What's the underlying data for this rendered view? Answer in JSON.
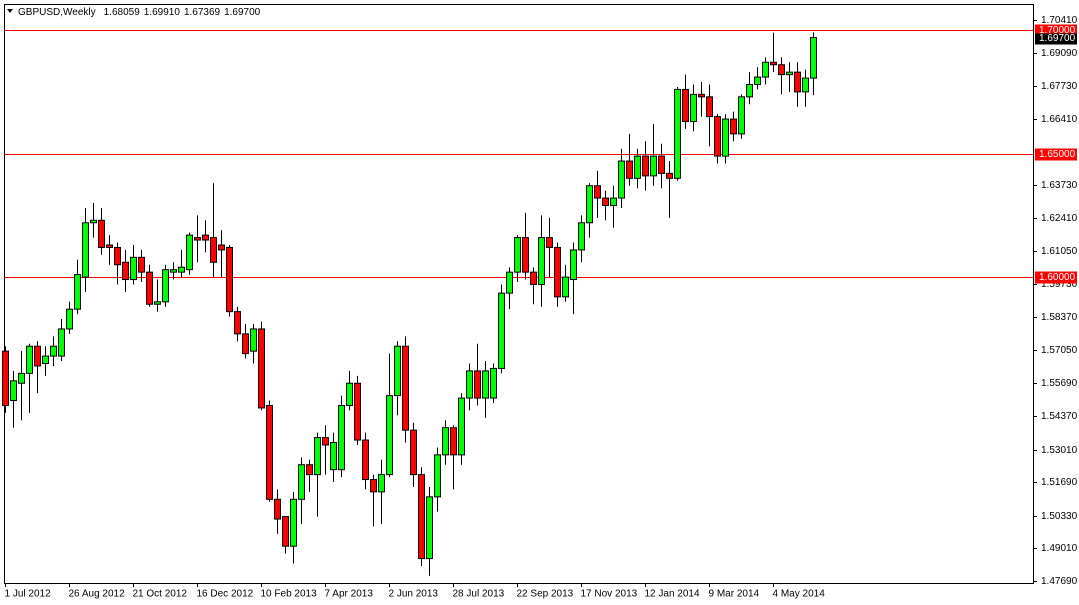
{
  "chart_data": {
    "type": "candlestick",
    "title": "GBPUSD,Weekly",
    "last_ohlc": [
      {
        "value": 1.68059,
        "label": "1.68059"
      },
      {
        "value": 1.6991,
        "label": "1.69910"
      },
      {
        "value": 1.67369,
        "label": "1.67369"
      },
      {
        "value": 1.697,
        "label": "1.69700"
      }
    ],
    "categories": [
      "1 Jul 2012",
      null,
      null,
      null,
      null,
      null,
      null,
      null,
      "26 Aug 2012",
      null,
      null,
      null,
      null,
      null,
      null,
      null,
      "21 Oct 2012",
      null,
      null,
      null,
      null,
      null,
      null,
      null,
      "16 Dec 2012",
      null,
      null,
      null,
      null,
      null,
      null,
      null,
      "10 Feb 2013",
      null,
      null,
      null,
      null,
      null,
      null,
      null,
      "7 Apr 2013",
      null,
      null,
      null,
      null,
      null,
      null,
      null,
      "2 Jun 2013",
      null,
      null,
      null,
      null,
      null,
      null,
      null,
      "28 Jul 2013",
      null,
      null,
      null,
      null,
      null,
      null,
      null,
      "22 Sep 2013",
      null,
      null,
      null,
      null,
      null,
      null,
      null,
      "17 Nov 2013",
      null,
      null,
      null,
      null,
      null,
      null,
      null,
      "12 Jan 2014",
      null,
      null,
      null,
      null,
      null,
      null,
      null,
      "9 Mar 2014",
      null,
      null,
      null,
      null,
      null,
      null,
      null,
      "4 May 2014",
      null,
      null,
      null,
      null,
      null
    ],
    "open": [
      1.57,
      1.55,
      1.557,
      1.561,
      1.572,
      1.565,
      1.568,
      1.568,
      1.579,
      1.587,
      1.6,
      1.622,
      1.623,
      1.613,
      1.612,
      1.606,
      1.599,
      1.608,
      1.602,
      1.589,
      1.59,
      1.602,
      1.602,
      1.603,
      1.616,
      1.617,
      1.616,
      1.613,
      1.612,
      1.586,
      1.577,
      1.57,
      1.579,
      1.548,
      1.51,
      1.503,
      1.491,
      1.51,
      1.524,
      1.52,
      1.535,
      1.522,
      1.522,
      1.548,
      1.557,
      1.534,
      1.518,
      1.513,
      1.52,
      1.552,
      1.572,
      1.538,
      1.52,
      1.486,
      1.511,
      1.528,
      1.539,
      1.528,
      1.551,
      1.562,
      1.551,
      1.551,
      1.563,
      1.5935,
      1.602,
      1.616,
      1.602,
      1.597,
      1.616,
      1.612,
      1.592,
      1.599,
      1.611,
      1.622,
      1.637,
      1.632,
      1.629,
      1.632,
      1.647,
      1.64,
      1.649,
      1.641,
      1.649,
      1.642,
      1.64,
      1.676,
      1.663,
      1.674,
      1.673,
      1.665,
      1.649,
      1.664,
      1.658,
      1.673,
      1.678,
      1.681,
      1.687,
      1.686,
      1.682,
      1.683,
      1.675,
      1.68059
    ],
    "high": [
      1.572,
      1.562,
      1.57,
      1.573,
      1.574,
      1.572,
      1.576,
      1.583,
      1.59,
      1.607,
      1.628,
      1.63,
      1.628,
      1.617,
      1.614,
      1.611,
      1.613,
      1.611,
      1.605,
      1.599,
      1.605,
      1.606,
      1.611,
      1.618,
      1.625,
      1.623,
      1.638,
      1.619,
      1.613,
      1.588,
      1.581,
      1.581,
      1.582,
      1.55,
      1.514,
      1.503,
      1.513,
      1.527,
      1.526,
      1.537,
      1.54,
      1.537,
      1.552,
      1.562,
      1.56,
      1.537,
      1.52,
      1.526,
      1.569,
      1.574,
      1.576,
      1.541,
      1.523,
      1.515,
      1.531,
      1.542,
      1.54,
      1.553,
      1.565,
      1.573,
      1.566,
      1.565,
      1.597,
      1.604,
      1.617,
      1.626,
      1.604,
      1.625,
      1.624,
      1.614,
      1.605,
      1.614,
      1.625,
      1.638,
      1.643,
      1.635,
      1.637,
      1.652,
      1.658,
      1.652,
      1.655,
      1.662,
      1.654,
      1.647,
      1.677,
      1.682,
      1.678,
      1.679,
      1.678,
      1.666,
      1.666,
      1.667,
      1.674,
      1.683,
      1.685,
      1.689,
      1.699,
      1.689,
      1.687,
      1.687,
      1.684,
      1.6991
    ],
    "low": [
      1.545,
      1.539,
      1.542,
      1.545,
      1.553,
      1.56,
      1.564,
      1.566,
      1.577,
      1.585,
      1.594,
      1.616,
      1.609,
      1.605,
      1.597,
      1.594,
      1.597,
      1.598,
      1.588,
      1.586,
      1.588,
      1.599,
      1.6,
      1.601,
      1.606,
      1.61,
      1.6,
      1.6,
      1.584,
      1.574,
      1.567,
      1.565,
      1.546,
      1.509,
      1.496,
      1.488,
      1.484,
      1.5,
      1.513,
      1.503,
      1.52,
      1.517,
      1.519,
      1.546,
      1.532,
      1.514,
      1.499,
      1.5,
      1.519,
      1.544,
      1.533,
      1.515,
      1.483,
      1.479,
      1.505,
      1.524,
      1.514,
      1.524,
      1.546,
      1.548,
      1.543,
      1.549,
      1.561,
      1.587,
      1.598,
      1.599,
      1.589,
      1.588,
      1.6,
      1.588,
      1.59,
      1.585,
      1.606,
      1.616,
      1.624,
      1.623,
      1.62,
      1.628,
      1.637,
      1.636,
      1.635,
      1.637,
      1.636,
      1.624,
      1.639,
      1.66,
      1.659,
      1.665,
      1.653,
      1.646,
      1.646,
      1.655,
      1.656,
      1.67,
      1.676,
      1.678,
      1.683,
      1.674,
      1.675,
      1.669,
      1.669,
      1.67369
    ],
    "close": [
      1.548,
      1.558,
      1.561,
      1.572,
      1.564,
      1.568,
      1.572,
      1.579,
      1.587,
      1.601,
      1.622,
      1.623,
      1.612,
      1.612,
      1.605,
      1.599,
      1.608,
      1.602,
      1.589,
      1.59,
      1.603,
      1.603,
      1.604,
      1.617,
      1.615,
      1.615,
      1.606,
      1.611,
      1.586,
      1.577,
      1.569,
      1.579,
      1.547,
      1.51,
      1.502,
      1.491,
      1.51,
      1.524,
      1.52,
      1.535,
      1.532,
      1.533,
      1.548,
      1.557,
      1.534,
      1.518,
      1.513,
      1.52,
      1.552,
      1.572,
      1.538,
      1.52,
      1.486,
      1.511,
      1.528,
      1.539,
      1.528,
      1.551,
      1.562,
      1.551,
      1.562,
      1.563,
      1.5935,
      1.602,
      1.616,
      1.602,
      1.597,
      1.616,
      1.612,
      1.592,
      1.6,
      1.611,
      1.622,
      1.637,
      1.632,
      1.629,
      1.632,
      1.647,
      1.64,
      1.649,
      1.641,
      1.649,
      1.642,
      1.64,
      1.676,
      1.663,
      1.674,
      1.673,
      1.665,
      1.649,
      1.664,
      1.658,
      1.673,
      1.678,
      1.681,
      1.687,
      1.686,
      1.682,
      1.683,
      1.675,
      1.6806,
      1.697
    ],
    "up_color": "#00ff00",
    "down_color": "#ff0000",
    "wick_color": "#000000",
    "ylim": [
      1.4761,
      1.7106
    ],
    "yticks": [
      {
        "value": 1.7041,
        "label": "1.70410"
      },
      {
        "value": 1.6909,
        "label": "1.69090"
      },
      {
        "value": 1.6773,
        "label": "1.67730"
      },
      {
        "value": 1.6641,
        "label": "1.66410"
      },
      {
        "value": 1.6373,
        "label": "1.63730"
      },
      {
        "value": 1.6241,
        "label": "1.62410"
      },
      {
        "value": 1.6105,
        "label": "1.61050"
      },
      {
        "value": 1.5973,
        "label": "1.59730"
      },
      {
        "value": 1.5837,
        "label": "1.58370"
      },
      {
        "value": 1.5705,
        "label": "1.57050"
      },
      {
        "value": 1.5569,
        "label": "1.55690"
      },
      {
        "value": 1.5437,
        "label": "1.54370"
      },
      {
        "value": 1.5301,
        "label": "1.53010"
      },
      {
        "value": 1.5169,
        "label": "1.51690"
      },
      {
        "value": 1.5033,
        "label": "1.50330"
      },
      {
        "value": 1.4901,
        "label": "1.49010"
      },
      {
        "value": 1.4769,
        "label": "1.47690"
      }
    ],
    "hlines": [
      {
        "value": 1.7,
        "label": "1.70000"
      },
      {
        "value": 1.65,
        "label": "1.65000"
      },
      {
        "value": 1.6,
        "label": "1.60000"
      }
    ],
    "hline_color": "#ff0000"
  }
}
